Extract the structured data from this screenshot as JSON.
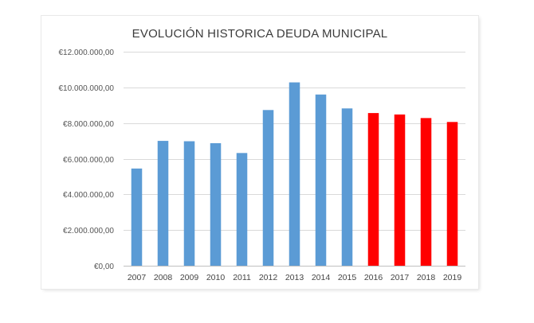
{
  "chart_data": {
    "type": "bar",
    "title": "EVOLUCIÓN  HISTORICA DEUDA MUNICIPAL",
    "xlabel": "",
    "ylabel": "",
    "categories": [
      "2007",
      "2008",
      "2009",
      "2010",
      "2011",
      "2012",
      "2013",
      "2014",
      "2015",
      "2016",
      "2017",
      "2018",
      "2019"
    ],
    "values": [
      5450000,
      7000000,
      6980000,
      6870000,
      6320000,
      8730000,
      10280000,
      9600000,
      8820000,
      8560000,
      8480000,
      8280000,
      8060000
    ],
    "bar_colors": [
      "#5b9bd5",
      "#5b9bd5",
      "#5b9bd5",
      "#5b9bd5",
      "#5b9bd5",
      "#5b9bd5",
      "#5b9bd5",
      "#5b9bd5",
      "#5b9bd5",
      "#ff0000",
      "#ff0000",
      "#ff0000",
      "#ff0000"
    ],
    "ylim": [
      0,
      12000000
    ],
    "y_ticks": [
      0,
      2000000,
      4000000,
      6000000,
      8000000,
      10000000,
      12000000
    ],
    "y_tick_labels": [
      "€0,00",
      "€2.000.000,00",
      "€4.000.000,00",
      "€6.000.000,00",
      "€8.000.000,00",
      "€10.000.000,00",
      "€12.000.000,00"
    ],
    "grid": true,
    "legend": "none"
  }
}
